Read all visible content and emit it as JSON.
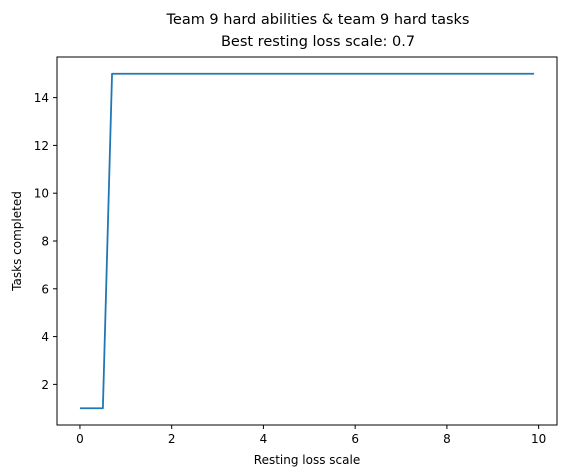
{
  "chart_data": {
    "type": "line",
    "title": "Team 9 hard abilities & team 9 hard tasks",
    "subtitle": "Best resting loss scale: 0.7",
    "xlabel": "Resting loss scale",
    "ylabel": "Tasks completed",
    "xlim": [
      -0.5,
      10.4
    ],
    "ylim": [
      0.3,
      15.7
    ],
    "xticks": [
      0,
      2,
      4,
      6,
      8,
      10
    ],
    "yticks": [
      2,
      4,
      6,
      8,
      10,
      12,
      14
    ],
    "grid": false,
    "series": [
      {
        "color": "#1f77b4",
        "x": [
          0.0,
          0.5,
          0.7,
          9.9
        ],
        "y": [
          1,
          1,
          15,
          15
        ]
      }
    ]
  }
}
